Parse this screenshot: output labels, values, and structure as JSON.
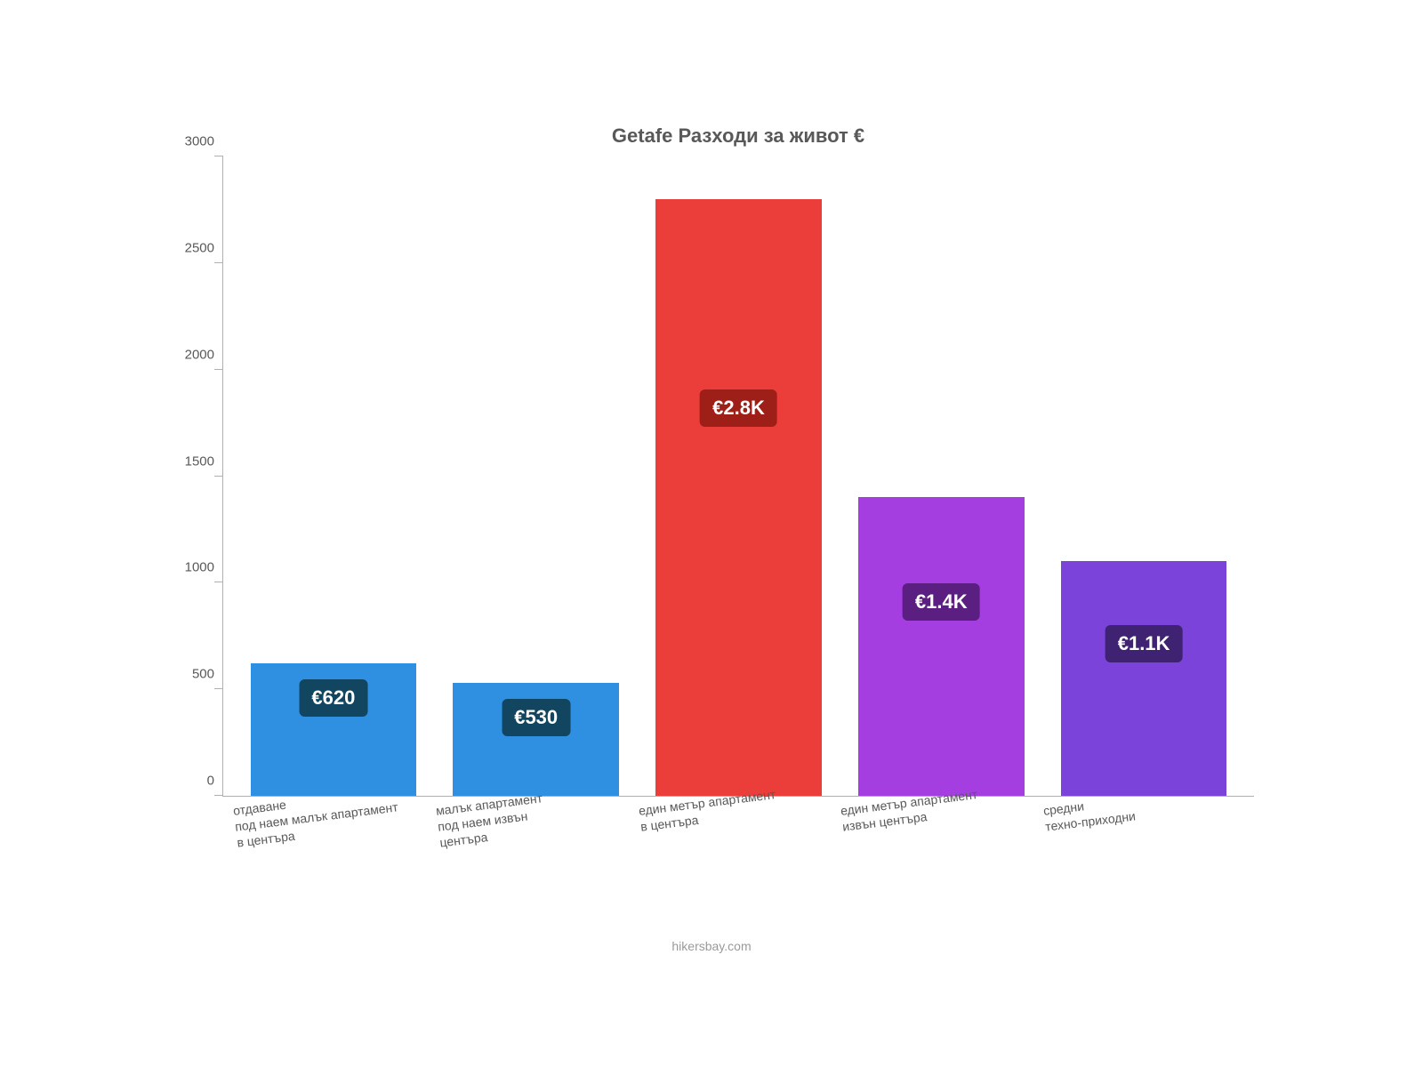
{
  "chart": {
    "type": "bar",
    "title": "Getafe Разходи за живот €",
    "title_fontsize": 22,
    "title_color": "#595959",
    "background_color": "#ffffff",
    "axis_color": "#b0b0b0",
    "label_color": "#595959",
    "label_fontsize": 15,
    "xlabel_fontsize": 14,
    "xlabel_rotation_deg": -7,
    "ylim": [
      0,
      3000
    ],
    "ytick_step": 500,
    "yticks": [
      0,
      500,
      1000,
      1500,
      2000,
      2500,
      3000
    ],
    "bar_width": 0.82,
    "categories": [
      "отдаване\nпод наем малък апартамент\nв центъра",
      "малък апартамент\nпод наем извън\nцентъра",
      "един метър апартамент\nв центъра",
      "един метър апартамент\nизвън центъра",
      "средни\nтехно-приходни"
    ],
    "values": [
      620,
      530,
      2800,
      1400,
      1100
    ],
    "value_labels": [
      "€620",
      "€530",
      "€2.8K",
      "€1.4K",
      "€1.1K"
    ],
    "bar_colors": [
      "#2f8fe0",
      "#2f8fe0",
      "#eb3e3a",
      "#a43ee0",
      "#7b43da"
    ],
    "badge_colors": [
      "#12455f",
      "#12455f",
      "#9d1f18",
      "#5a1f80",
      "#3f2272"
    ],
    "badge_text_color": "#ffffff",
    "badge_fontsize": 22,
    "source": "hikersbay.com",
    "source_color": "#9a9a9a"
  }
}
